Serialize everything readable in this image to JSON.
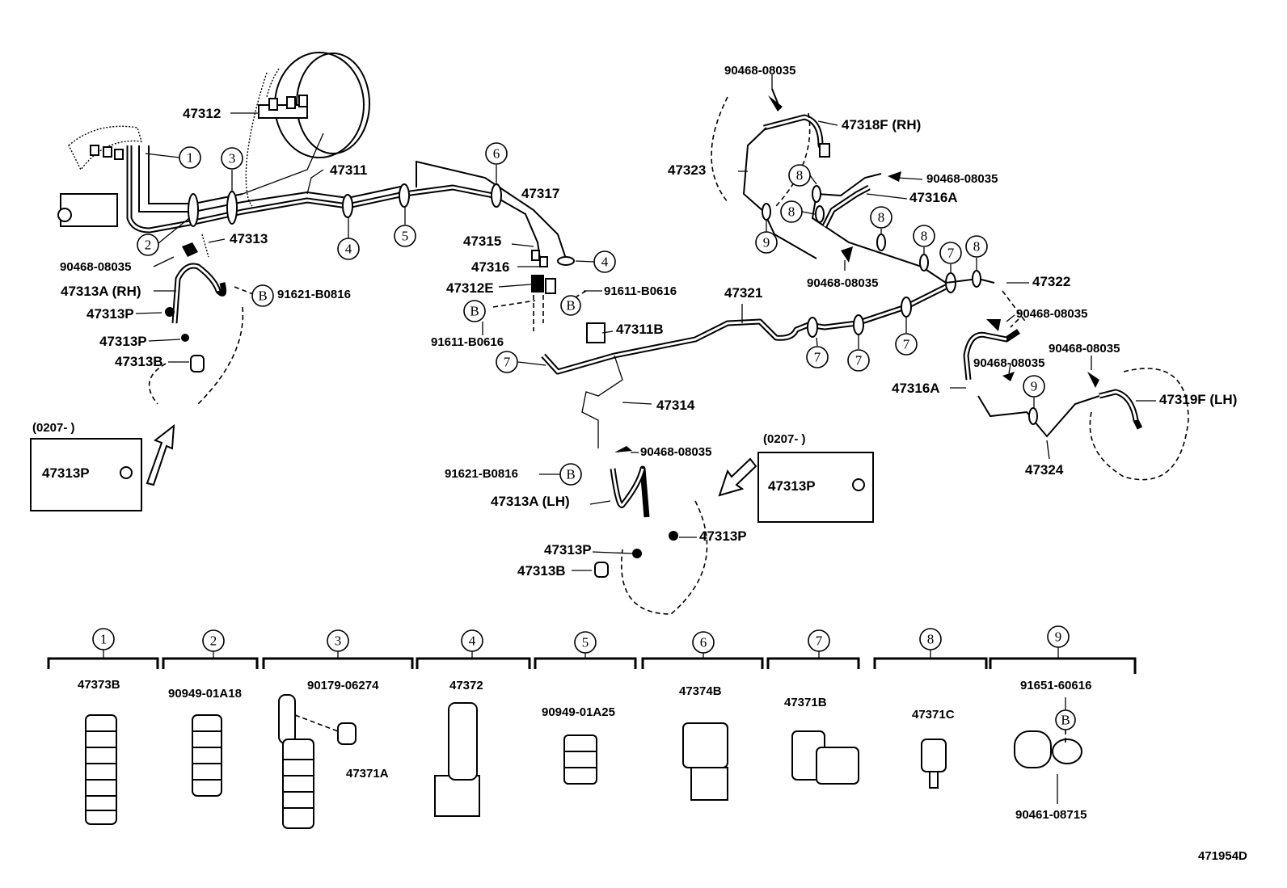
{
  "diagram_id": "471954D",
  "labels": {
    "p47312": "47312",
    "p47311": "47311",
    "p47313": "47313",
    "p90468_a": "90468-08035",
    "p47313A_rh": "47313A (RH)",
    "p47313P_a": "47313P",
    "p47313P_b": "47313P",
    "p47313B_a": "47313B",
    "p91621_a": "91621-B0816",
    "p47317": "47317",
    "p47315": "47315",
    "p47316": "47316",
    "p47312E": "47312E",
    "p91611_a": "91611-B0616",
    "p47311B": "47311B",
    "p91611_b": "91611-B0616",
    "p47321": "47321",
    "p47314": "47314",
    "p90468_b": "90468-08035",
    "p91621_b": "91621-B0816",
    "p47313A_lh": "47313A (LH)",
    "p47313P_c": "47313P",
    "p47313P_d": "47313P",
    "p47313B_b": "47313B",
    "inset1_date": "(0207-      )",
    "inset1_part": "47313P",
    "inset2_date": "(0207-      )",
    "inset2_part": "47313P",
    "p90468_c": "90468-08035",
    "p47318F": "47318F (RH)",
    "p47323": "47323",
    "p90468_d": "90468-08035",
    "p47316A_a": "47316A",
    "p90468_e": "90468-08035",
    "p47322": "47322",
    "p90468_f": "90468-08035",
    "p90468_g": "90468-08035",
    "p90468_h": "90468-08035",
    "p47316A_b": "47316A",
    "p47319F": "47319F (LH)",
    "p47324": "47324"
  },
  "callouts": {
    "c1": "1",
    "c2": "2",
    "c3": "3",
    "c4": "4",
    "c5": "5",
    "c6": "6",
    "c7": "7",
    "c8": "8",
    "c9": "9",
    "cB": "B"
  },
  "clamp_table": [
    {
      "callout": "1",
      "parts": [
        "47373B"
      ]
    },
    {
      "callout": "2",
      "parts": [
        "90949-01A18"
      ]
    },
    {
      "callout": "3",
      "parts": [
        "90179-06274",
        "47371A"
      ]
    },
    {
      "callout": "4",
      "parts": [
        "47372"
      ]
    },
    {
      "callout": "5",
      "parts": [
        "90949-01A25"
      ]
    },
    {
      "callout": "6",
      "parts": [
        "47374B"
      ]
    },
    {
      "callout": "7",
      "parts": [
        "47371B"
      ]
    },
    {
      "callout": "8",
      "parts": [
        "47371C"
      ]
    },
    {
      "callout": "9",
      "parts": [
        "91651-60616",
        "90461-08715"
      ]
    }
  ]
}
